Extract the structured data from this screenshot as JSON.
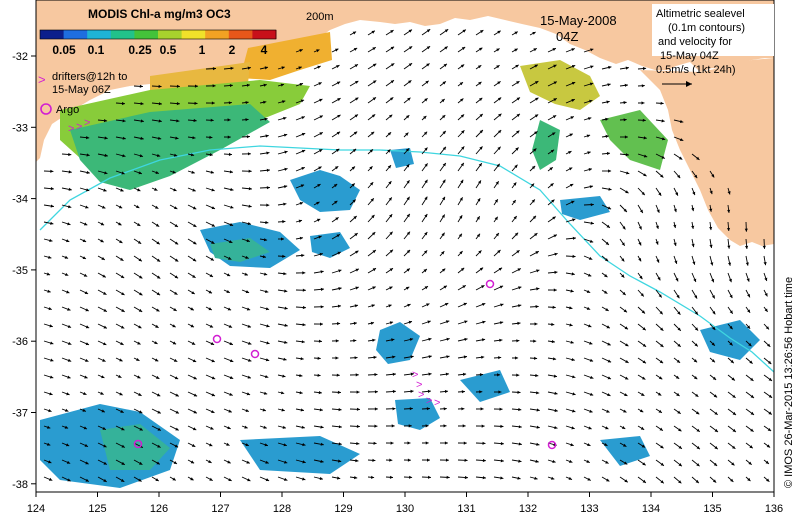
{
  "date_title": "15-May-2008",
  "time_title": "04Z",
  "bathy_label": "200m",
  "legend": {
    "title": "MODIS Chl-a mg/m3 OC3",
    "ticks": [
      "0.05",
      "0.1",
      "0.25",
      "0.5",
      "1",
      "2",
      "4"
    ],
    "colors": [
      "#0b1f8c",
      "#1e6ee0",
      "#1fb3d6",
      "#22c28a",
      "#44c23a",
      "#a7d22d",
      "#f0e12a",
      "#f2a223",
      "#e8571a",
      "#c8101a"
    ]
  },
  "drifters_label_1": "drifters@12h to",
  "drifters_label_2": "15-May 06Z",
  "argo_label": "Argo",
  "altimetry_note": [
    "Altimetric sealevel",
    "(0.1m contours)",
    "and velocity for",
    "15-May 04Z",
    "0.5m/s (1kt 24h)"
  ],
  "credit": "© IMOS 26-Mar-2015 13:26:56 Hobart time",
  "x_ticks": [
    "124",
    "125",
    "126",
    "127",
    "128",
    "129",
    "130",
    "131",
    "132",
    "133",
    "134",
    "135",
    "136"
  ],
  "y_ticks": [
    "-32",
    "-33",
    "-34",
    "-35",
    "-36",
    "-37",
    "-38"
  ],
  "colors": {
    "land": "#f7c8a0",
    "ocean": "#ffffff",
    "bathy": "#3fd6e0",
    "argo": "#d21ed2",
    "arrow": "#000000"
  }
}
